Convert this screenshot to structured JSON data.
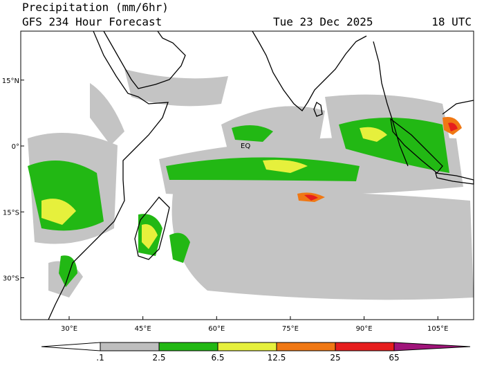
{
  "header": {
    "title": "Precipitation (mm/6hr)",
    "subtitle": "GFS 234 Hour Forecast",
    "date": "Tue 23 Dec 2025",
    "time": "18 UTC"
  },
  "map": {
    "lon_ticks": [
      {
        "value": 30,
        "label": "30°E"
      },
      {
        "value": 45,
        "label": "45°E"
      },
      {
        "value": 60,
        "label": "60°E"
      },
      {
        "value": 75,
        "label": "75°E"
      },
      {
        "value": 90,
        "label": "90°E"
      },
      {
        "value": 105,
        "label": "105°E"
      }
    ],
    "lat_ticks": [
      {
        "value": 15,
        "label": "15°N"
      },
      {
        "value": 0,
        "label": "0°"
      },
      {
        "value": -15,
        "label": "15°S"
      },
      {
        "value": -30,
        "label": "30°S"
      }
    ],
    "eq_label": "EQ"
  },
  "colorbar": {
    "levels": [
      {
        "value": 0.1,
        "label": ".1"
      },
      2.5,
      6.5,
      12.5,
      25,
      65
    ],
    "colors": [
      "#ffffff",
      "#bebebe",
      "#22b814",
      "#e6f03c",
      "#f07814",
      "#e61e1e",
      "#a0147a"
    ]
  }
}
